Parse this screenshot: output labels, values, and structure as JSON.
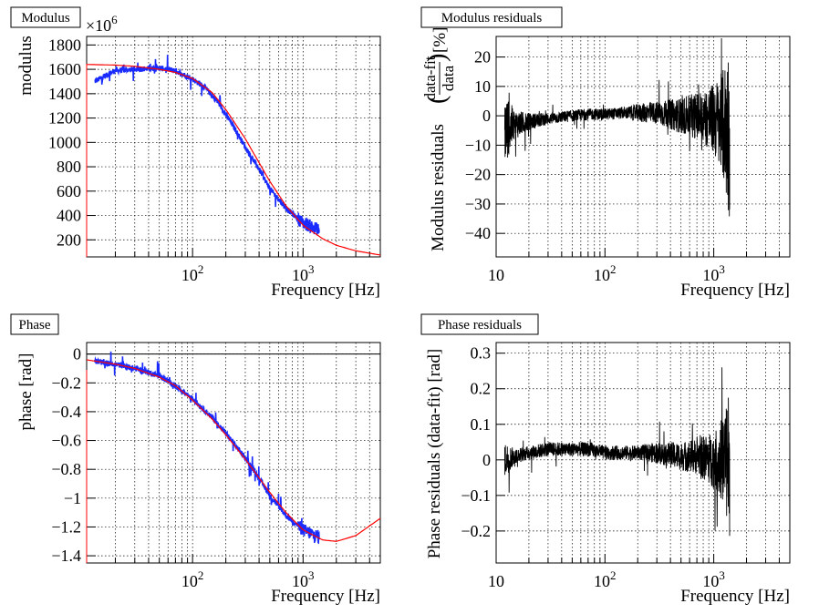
{
  "panels": [
    {
      "title": "Modulus",
      "xlabel": "Frequency [Hz]",
      "ylabel": "modulus",
      "y_multiplier": "×10^6",
      "chart_data": {
        "type": "line",
        "title": "Modulus",
        "xlabel": "Frequency [Hz]",
        "ylabel": "modulus",
        "x_scale": "log",
        "xlim": [
          11,
          5000
        ],
        "ylim": [
          60,
          1870
        ],
        "grid": true,
        "x_ticks": [
          {
            "value": 100,
            "label": "10^2"
          },
          {
            "value": 1000,
            "label": "10^3"
          }
        ],
        "y_ticks": [
          200,
          400,
          600,
          800,
          1000,
          1200,
          1400,
          1600,
          1800
        ],
        "series": [
          {
            "role": "data",
            "color": "#1a2bff",
            "x": [
              13,
              20,
              30,
              50,
              70,
              100,
              130,
              170,
              200,
              250,
              300,
              400,
              500,
              700,
              1000,
              1400
            ],
            "y": [
              1500,
              1590,
              1600,
              1610,
              1590,
              1520,
              1450,
              1330,
              1230,
              1090,
              960,
              780,
              620,
              460,
              340,
              280
            ]
          },
          {
            "role": "fit",
            "color": "#ff0000",
            "x": [
              11,
              20,
              30,
              50,
              70,
              100,
              150,
              200,
              300,
              500,
              700,
              1000,
              1500,
              2000,
              3000,
              5000
            ],
            "y": [
              1640,
              1635,
              1625,
              1600,
              1575,
              1525,
              1410,
              1270,
              1030,
              680,
              480,
              320,
              210,
              155,
              110,
              75
            ]
          }
        ]
      }
    },
    {
      "title": "Modulus residuals",
      "xlabel": "Frequency [Hz]",
      "ylabel": "Modulus residuals",
      "ylabel_frac_num": "data-fit",
      "ylabel_frac_den": "data",
      "ylabel_unit": "[%]",
      "chart_data": {
        "type": "line",
        "title": "Modulus residuals",
        "xlabel": "Frequency [Hz]",
        "x_scale": "log",
        "xlim": [
          10,
          5000
        ],
        "ylim": [
          -48,
          27
        ],
        "grid": true,
        "x_ticks": [
          {
            "value": 10,
            "label": "10"
          },
          {
            "value": 100,
            "label": "10^2"
          },
          {
            "value": 1000,
            "label": "10^3"
          }
        ],
        "y_ticks": [
          -40,
          -30,
          -20,
          -10,
          0,
          10,
          20
        ],
        "series": [
          {
            "role": "residual",
            "color": "#000000",
            "x": [
              12,
              15,
              20,
              30,
              50,
              70,
              100,
              150,
              200,
              300,
              500,
              700,
              1000,
              1200,
              1400
            ],
            "y": [
              -5,
              -3,
              -2,
              -1,
              0,
              0.5,
              0.5,
              1,
              1,
              1,
              0,
              0,
              -1,
              -3,
              -5
            ],
            "spread": [
              12,
              5,
              3,
              2,
              2,
              2,
              2,
              2,
              3,
              4,
              6,
              8,
              12,
              18,
              30
            ]
          }
        ]
      }
    },
    {
      "title": "Phase",
      "xlabel": "Frequency [Hz]",
      "ylabel": "phase [rad]",
      "chart_data": {
        "type": "line",
        "title": "Phase",
        "xlabel": "Frequency [Hz]",
        "ylabel": "phase [rad]",
        "x_scale": "log",
        "xlim": [
          11,
          5000
        ],
        "ylim": [
          -1.45,
          0.08
        ],
        "grid": true,
        "x_ticks": [
          {
            "value": 100,
            "label": "10^2"
          },
          {
            "value": 1000,
            "label": "10^3"
          }
        ],
        "y_ticks": [
          0,
          -0.2,
          -0.4,
          -0.6,
          -0.8,
          -1,
          -1.2,
          -1.4
        ],
        "series": [
          {
            "role": "data",
            "color": "#1a2bff",
            "x": [
              13,
              20,
              30,
              50,
              70,
              100,
              150,
              200,
              300,
              400,
              500,
              700,
              1000,
              1400
            ],
            "y": [
              -0.05,
              -0.07,
              -0.1,
              -0.15,
              -0.22,
              -0.31,
              -0.44,
              -0.55,
              -0.72,
              -0.86,
              -0.98,
              -1.12,
              -1.22,
              -1.27
            ]
          },
          {
            "role": "fit",
            "color": "#ff0000",
            "x": [
              11,
              20,
              30,
              50,
              70,
              100,
              150,
              200,
              300,
              500,
              700,
              1000,
              1500,
              2000,
              3000,
              5000
            ],
            "y": [
              -0.04,
              -0.07,
              -0.1,
              -0.16,
              -0.22,
              -0.32,
              -0.45,
              -0.56,
              -0.73,
              -0.96,
              -1.1,
              -1.22,
              -1.29,
              -1.3,
              -1.26,
              -1.14
            ]
          }
        ]
      }
    },
    {
      "title": "Phase residuals",
      "xlabel": "Frequency [Hz]",
      "ylabel": "Phase residuals (data-fit) [rad]",
      "chart_data": {
        "type": "line",
        "title": "Phase residuals",
        "xlabel": "Frequency [Hz]",
        "ylabel": "Phase residuals (data-fit) [rad]",
        "x_scale": "log",
        "xlim": [
          10,
          5000
        ],
        "ylim": [
          -0.29,
          0.33
        ],
        "grid": true,
        "x_ticks": [
          {
            "value": 10,
            "label": "10"
          },
          {
            "value": 100,
            "label": "10^2"
          },
          {
            "value": 1000,
            "label": "10^3"
          }
        ],
        "y_ticks": [
          -0.2,
          -0.1,
          0,
          0.1,
          0.2,
          0.3
        ],
        "series": [
          {
            "role": "residual",
            "color": "#000000",
            "x": [
              12,
              15,
              20,
              30,
              50,
              70,
              100,
              150,
              200,
              300,
              500,
              700,
              1000,
              1200,
              1400
            ],
            "y": [
              0,
              0.01,
              0.02,
              0.03,
              0.03,
              0.03,
              0.02,
              0.02,
              0.02,
              0.02,
              0.01,
              0.01,
              0,
              0,
              0
            ],
            "spread": [
              0.05,
              0.02,
              0.02,
              0.02,
              0.02,
              0.02,
              0.02,
              0.02,
              0.02,
              0.03,
              0.04,
              0.05,
              0.08,
              0.12,
              0.22
            ]
          }
        ]
      }
    }
  ]
}
